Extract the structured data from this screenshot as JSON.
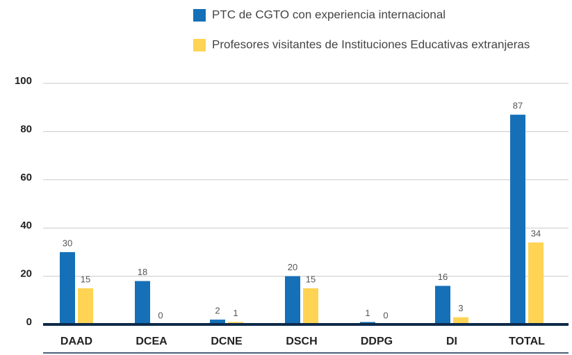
{
  "chart_data": {
    "type": "bar",
    "categories": [
      "DAAD",
      "DCEA",
      "DCNE",
      "DSCH",
      "DDPG",
      "DI",
      "TOTAL"
    ],
    "series": [
      {
        "name": "PTC de CGTO con experiencia internacional",
        "color": "#1570b8",
        "values": [
          30,
          18,
          2,
          20,
          1,
          16,
          87
        ]
      },
      {
        "name": "Profesores visitantes de Instituciones Educativas extranjeras",
        "color": "#ffd454",
        "values": [
          15,
          0,
          1,
          15,
          0,
          3,
          34
        ]
      }
    ],
    "ylim": [
      0,
      100
    ],
    "yticks": [
      0,
      20,
      40,
      60,
      80,
      100
    ],
    "grid": true
  }
}
